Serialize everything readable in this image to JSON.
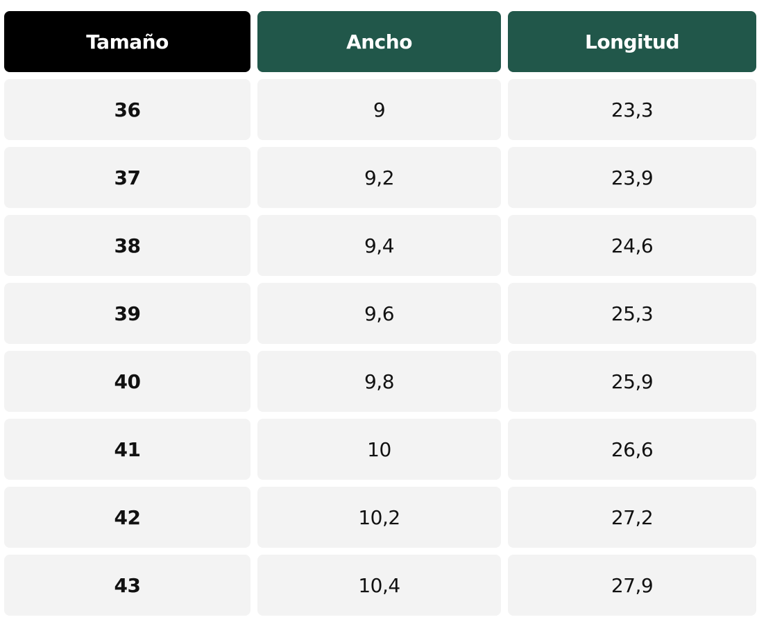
{
  "table": {
    "headers": [
      "Tamaño",
      "Ancho",
      "Longitud"
    ],
    "rows": [
      [
        "36",
        "9",
        "23,3"
      ],
      [
        "37",
        "9,2",
        "23,9"
      ],
      [
        "38",
        "9,4",
        "24,6"
      ],
      [
        "39",
        "9,6",
        "25,3"
      ],
      [
        "40",
        "9,8",
        "25,9"
      ],
      [
        "41",
        "10",
        "26,6"
      ],
      [
        "42",
        "10,2",
        "27,2"
      ],
      [
        "43",
        "10,4",
        "27,9"
      ]
    ]
  }
}
